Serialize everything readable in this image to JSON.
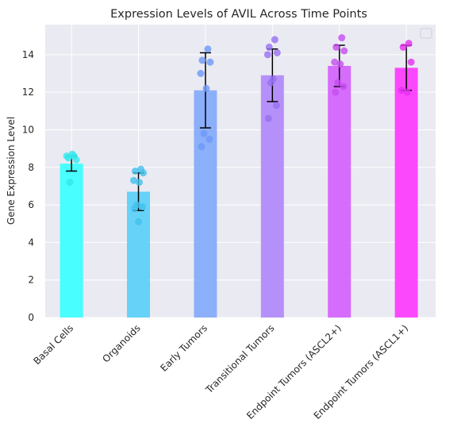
{
  "chart_data": {
    "type": "bar",
    "title": "Expression Levels of AVIL Across Time Points",
    "xlabel": "",
    "ylabel": "Gene Expression Level",
    "categories": [
      "Basal Cells",
      "Organoids",
      "Early Tumors",
      "Transitional Tumors",
      "Endpoint Tumors (ASCL2+)",
      "Endpoint Tumors (ASCL1+)"
    ],
    "values": [
      8.2,
      6.7,
      12.1,
      12.9,
      13.4,
      13.3
    ],
    "errors": [
      0.4,
      1.0,
      2.0,
      1.4,
      1.1,
      1.2
    ],
    "points": [
      [
        8.6,
        8.5,
        8.4,
        8.6,
        8.7,
        7.2
      ],
      [
        7.9,
        7.8,
        7.7,
        7.3,
        7.2,
        6.0,
        5.9,
        5.8,
        5.1
      ],
      [
        14.3,
        13.7,
        13.6,
        13.0,
        12.2,
        9.8,
        9.5,
        9.1
      ],
      [
        14.8,
        14.4,
        14.1,
        14.0,
        12.7,
        12.5,
        11.3,
        10.6
      ],
      [
        14.9,
        14.4,
        14.2,
        13.6,
        13.5,
        12.5,
        12.3,
        12.0
      ],
      [
        14.6,
        14.4,
        13.6,
        12.1,
        12.0
      ]
    ],
    "colors": [
      "#3ffffe",
      "#5fd1f7",
      "#87acfa",
      "#b38bfa",
      "#d565fb",
      "#fd3ffd"
    ],
    "point_colors": [
      "#33e8ee",
      "#44c0ee",
      "#6d99f8",
      "#9670f0",
      "#c54ef0",
      "#e530f0"
    ],
    "ylim": [
      0,
      15.6
    ],
    "yticks": [
      0,
      2,
      4,
      6,
      8,
      10,
      12,
      14
    ],
    "grid": true,
    "legend": "top-right",
    "background_color": "#eaeaf2"
  }
}
